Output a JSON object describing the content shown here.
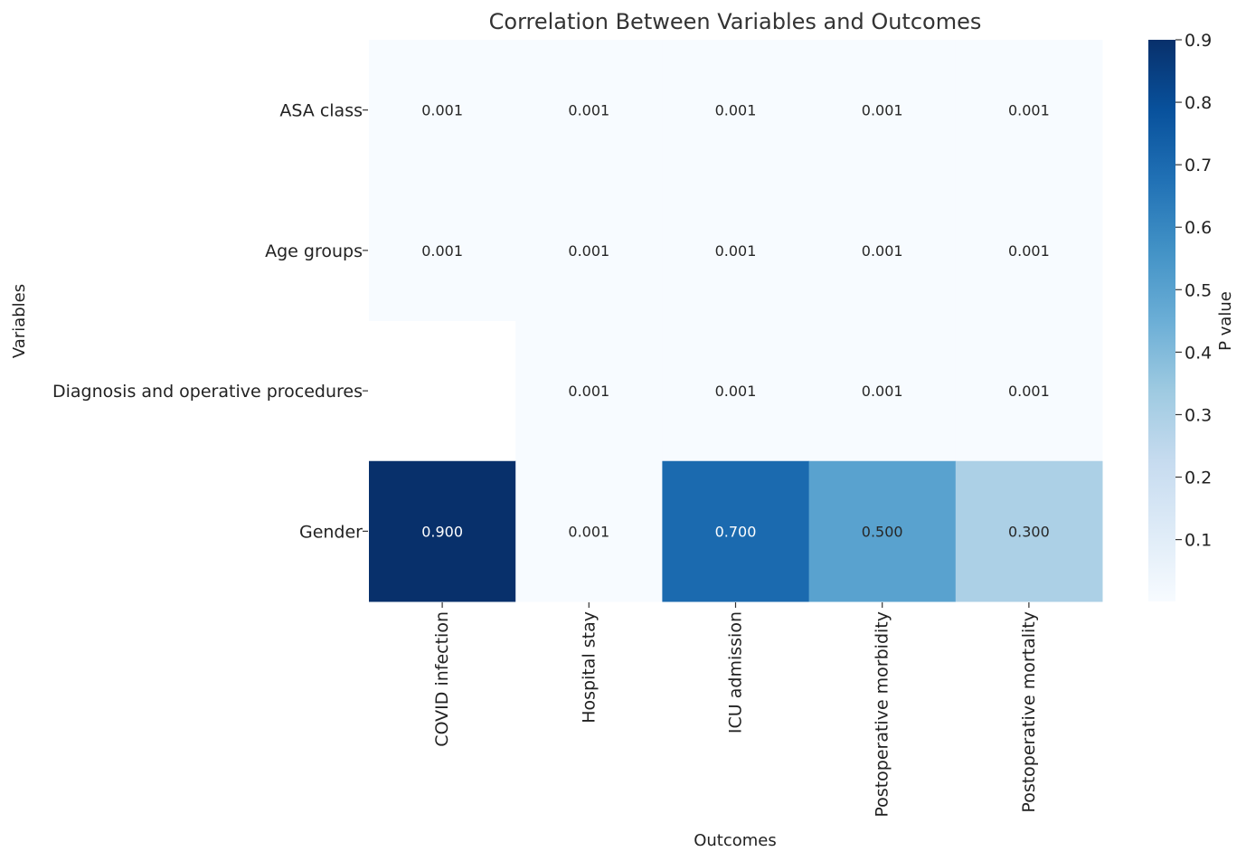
{
  "chart_data": {
    "type": "heatmap",
    "title": "Correlation Between Variables and Outcomes",
    "xlabel": "Outcomes",
    "ylabel": "Variables",
    "x_categories": [
      "COVID infection",
      "Hospital stay",
      "ICU admission",
      "Postoperative morbidity",
      "Postoperative mortality"
    ],
    "y_categories": [
      "ASA class",
      "Age groups",
      "Diagnosis and operative procedures",
      "Gender"
    ],
    "values": [
      [
        0.001,
        0.001,
        0.001,
        0.001,
        0.001
      ],
      [
        0.001,
        0.001,
        0.001,
        0.001,
        0.001
      ],
      [
        null,
        0.001,
        0.001,
        0.001,
        0.001
      ],
      [
        0.9,
        0.001,
        0.7,
        0.5,
        0.3
      ]
    ],
    "annotation_format": "0.000",
    "colormap": "Blues",
    "colorbar": {
      "label": "P value",
      "vmin": 0.001,
      "vmax": 0.9,
      "ticks": [
        0.1,
        0.2,
        0.3,
        0.4,
        0.5,
        0.6,
        0.7,
        0.8,
        0.9
      ],
      "tick_labels": [
        "0.1",
        "0.2",
        "0.3",
        "0.4",
        "0.5",
        "0.6",
        "0.7",
        "0.8",
        "0.9"
      ]
    },
    "grid": false
  }
}
